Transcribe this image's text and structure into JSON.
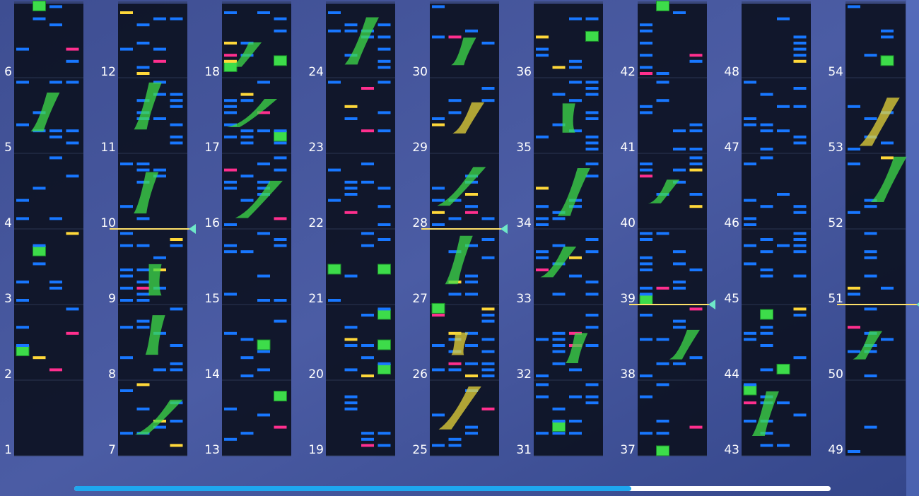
{
  "measures": [
    1,
    2,
    3,
    4,
    5,
    6,
    7,
    8,
    9,
    10,
    11,
    12,
    13,
    14,
    15,
    16,
    17,
    18,
    19,
    20,
    21,
    22,
    23,
    24,
    25,
    26,
    27,
    28,
    29,
    30,
    31,
    32,
    33,
    34,
    35,
    36,
    37,
    38,
    39,
    40,
    41,
    42,
    43,
    44,
    45,
    46,
    47,
    48,
    49,
    50,
    51,
    52,
    53,
    54
  ]
}
